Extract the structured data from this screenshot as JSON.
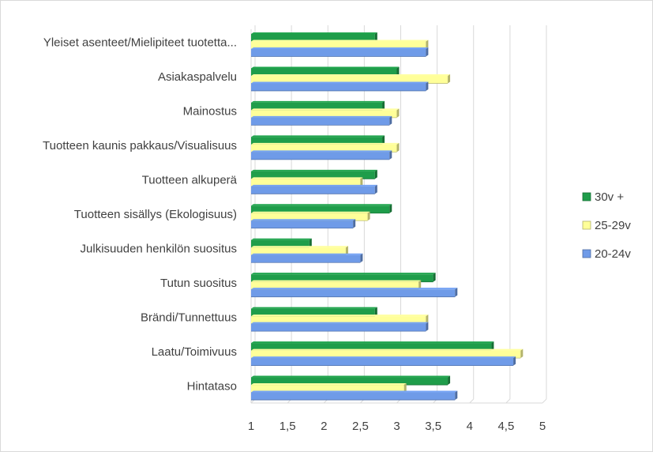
{
  "chart_data": {
    "type": "bar",
    "orientation": "horizontal",
    "title": "",
    "xlabel": "",
    "ylabel": "",
    "xlim": [
      1,
      5
    ],
    "x_ticks": [
      "1",
      "1,5",
      "2",
      "2,5",
      "3",
      "3,5",
      "4",
      "4,5",
      "5"
    ],
    "x_tick_values": [
      1,
      1.5,
      2,
      2.5,
      3,
      3.5,
      4,
      4.5,
      5
    ],
    "grid": true,
    "legend_position": "right",
    "categories": [
      "Yleiset asenteet/Mielipiteet tuotetta...",
      "Asiakaspalvelu",
      "Mainostus",
      "Tuotteen kaunis pakkaus/Visualisuus",
      "Tuotteen alkuperä",
      "Tuotteen sisällys (Ekologisuus)",
      "Julkisuuden henkilön suositus",
      "Tutun suositus",
      "Brändi/Tunnettuus",
      "Laatu/Toimivuus",
      "Hintataso"
    ],
    "series": [
      {
        "name": "30v +",
        "color": "#1f9d4a",
        "values": [
          2.7,
          3.0,
          2.8,
          2.8,
          2.7,
          2.9,
          1.8,
          3.5,
          2.7,
          4.3,
          3.7
        ]
      },
      {
        "name": "25-29v",
        "color": "#ffff99",
        "values": [
          3.4,
          3.7,
          3.0,
          3.0,
          2.5,
          2.6,
          2.3,
          3.3,
          3.4,
          4.7,
          3.1
        ]
      },
      {
        "name": "20-24v",
        "color": "#6f9be8",
        "values": [
          3.4,
          3.4,
          2.9,
          2.9,
          2.7,
          2.4,
          2.5,
          3.8,
          3.4,
          4.6,
          3.8
        ]
      }
    ]
  }
}
